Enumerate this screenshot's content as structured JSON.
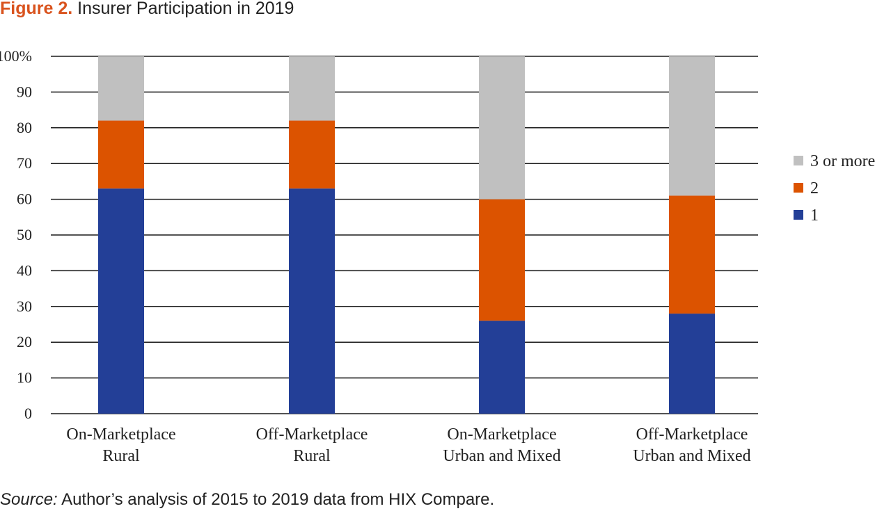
{
  "figure": {
    "label": "Figure 2.",
    "title": "Insurer Participation in 2019"
  },
  "source": {
    "label": "Source:",
    "text": "Author’s analysis of 2015 to 2019 data from HIX Compare."
  },
  "chart_data": {
    "type": "bar",
    "stacked": true,
    "categories": [
      [
        "On-Marketplace",
        "Rural"
      ],
      [
        "Off-Marketplace",
        "Rural"
      ],
      [
        "On-Marketplace",
        "Urban and Mixed"
      ],
      [
        "Off-Marketplace",
        "Urban and Mixed"
      ]
    ],
    "series": [
      {
        "name": "1",
        "color": "#233f97",
        "values": [
          63,
          63,
          26,
          28
        ]
      },
      {
        "name": "2",
        "color": "#dc5300",
        "values": [
          19,
          19,
          34,
          33
        ]
      },
      {
        "name": "3 or more",
        "color": "#c0c0c0",
        "values": [
          18,
          18,
          40,
          39
        ]
      }
    ],
    "ylim": [
      0,
      100
    ],
    "yticks": [
      0,
      10,
      20,
      30,
      40,
      50,
      60,
      70,
      80,
      90,
      100
    ],
    "ytick_labels": [
      "0",
      "10",
      "20",
      "30",
      "40",
      "50",
      "60",
      "70",
      "80",
      "90",
      "100%"
    ],
    "xlabel": "",
    "ylabel": "",
    "grid": true,
    "legend_position": "right",
    "legend_order": [
      "3 or more",
      "2",
      "1"
    ]
  }
}
